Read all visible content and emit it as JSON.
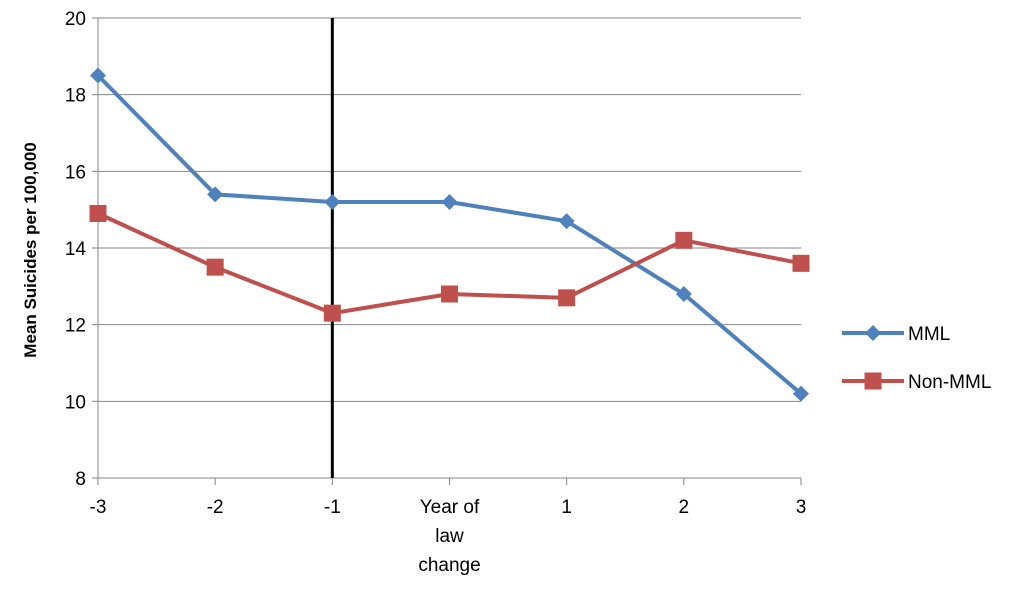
{
  "chart_data": {
    "type": "line",
    "title": "",
    "xlabel": "",
    "ylabel": "Mean Suicides per 100,000",
    "categories": [
      [
        "-3"
      ],
      [
        "-2"
      ],
      [
        "-1"
      ],
      [
        "Year of",
        "law",
        "change"
      ],
      [
        "1"
      ],
      [
        "2"
      ],
      [
        "3"
      ]
    ],
    "ylim": [
      8,
      20
    ],
    "yticks": [
      8,
      10,
      12,
      14,
      16,
      18,
      20
    ],
    "grid": "horizontal",
    "legend_position": "right",
    "reference_line": {
      "category_index": 2,
      "color": "#000000"
    },
    "series": [
      {
        "name": "MML",
        "color": "#4f81bd",
        "marker": "diamond",
        "values": [
          18.5,
          15.4,
          15.2,
          15.2,
          14.7,
          12.8,
          10.2
        ]
      },
      {
        "name": "Non-MML",
        "color": "#c0504d",
        "marker": "square",
        "values": [
          14.9,
          13.5,
          12.3,
          12.8,
          12.7,
          14.2,
          13.6
        ]
      }
    ]
  }
}
